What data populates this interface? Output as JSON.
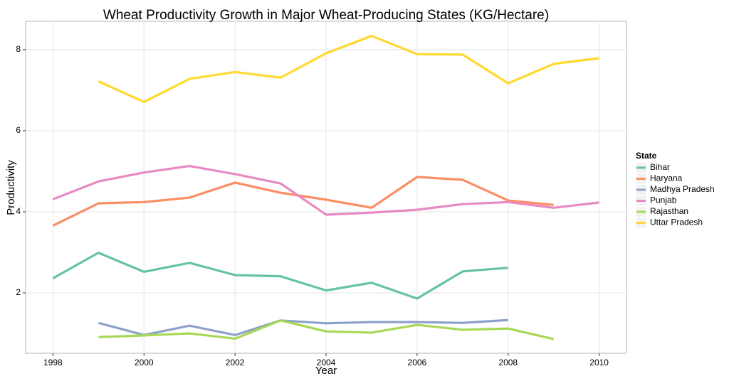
{
  "chart_data": {
    "type": "line",
    "title": "Wheat Productivity Growth in Major Wheat-Producing States (KG/Hectare)",
    "x_label": "Year",
    "y_label": "Productivity",
    "legend_title": "State",
    "legend": "right",
    "x": [
      1998,
      1999,
      2000,
      2001,
      2002,
      2003,
      2004,
      2005,
      2006,
      2007,
      2008,
      2009,
      2010
    ],
    "xlim": [
      1997.4,
      2010.6
    ],
    "xticks": [
      1998,
      2000,
      2002,
      2004,
      2006,
      2008,
      2010
    ],
    "ylim": [
      0.51,
      8.7
    ],
    "yticks": [
      2,
      4,
      6,
      8
    ],
    "grid": true,
    "series": [
      {
        "name": "Bihar",
        "color": "#66c2a5",
        "values": [
          2.36,
          2.99,
          2.52,
          2.74,
          2.44,
          2.41,
          2.06,
          2.25,
          1.86,
          2.53,
          2.62,
          null,
          null
        ]
      },
      {
        "name": "Haryana",
        "color": "#fc8d62",
        "values": [
          3.66,
          4.21,
          4.24,
          4.35,
          4.72,
          4.47,
          4.3,
          4.1,
          4.86,
          4.79,
          4.28,
          4.17,
          null
        ]
      },
      {
        "name": "Madhya Pradesh",
        "color": "#8da0cb",
        "values": [
          null,
          1.26,
          0.96,
          1.19,
          0.96,
          1.32,
          1.25,
          1.28,
          1.28,
          1.26,
          1.33,
          null,
          null
        ]
      },
      {
        "name": "Punjab",
        "color": "#e78ac3",
        "values": [
          4.31,
          4.75,
          4.97,
          5.13,
          4.93,
          4.7,
          3.93,
          3.98,
          4.05,
          4.19,
          4.24,
          4.1,
          4.23
        ]
      },
      {
        "name": "Rajasthan",
        "color": "#a6d854",
        "values": [
          null,
          0.91,
          0.95,
          1.0,
          0.87,
          1.32,
          1.05,
          1.02,
          1.21,
          1.09,
          1.12,
          0.86,
          null
        ]
      },
      {
        "name": "Uttar Pradesh",
        "color": "#ffd92f",
        "values": [
          null,
          7.22,
          6.71,
          7.28,
          7.45,
          7.31,
          7.91,
          8.34,
          7.89,
          7.88,
          7.17,
          7.65,
          7.79
        ]
      }
    ]
  }
}
